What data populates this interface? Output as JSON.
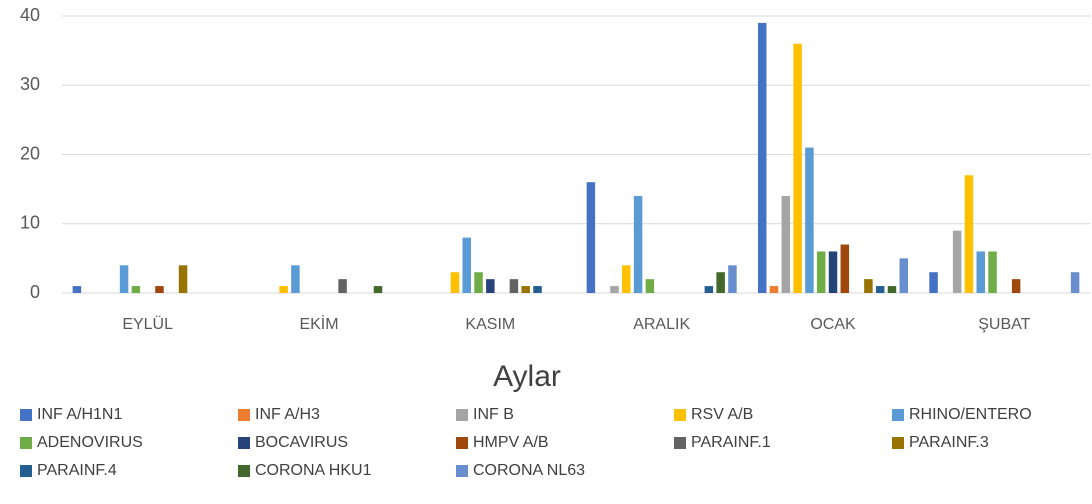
{
  "chart_data": {
    "type": "bar",
    "x_label": "Aylar",
    "categories": [
      "EYLÜL",
      "EKİM",
      "KASIM",
      "ARALIK",
      "OCAK",
      "ŞUBAT"
    ],
    "ylim": [
      0,
      40
    ],
    "yticks": [
      0,
      10,
      20,
      30,
      40
    ],
    "grid": true,
    "legend": "bottom",
    "series": [
      {
        "name": "INF A/H1N1",
        "color": "#4472c4",
        "values": [
          1,
          0,
          0,
          16,
          39,
          3
        ]
      },
      {
        "name": "INF A/H3",
        "color": "#ed7d31",
        "values": [
          0,
          0,
          0,
          0,
          1,
          0
        ]
      },
      {
        "name": "INF B",
        "color": "#a5a5a5",
        "values": [
          0,
          0,
          0,
          1,
          14,
          9
        ]
      },
      {
        "name": "RSV A/B",
        "color": "#ffc000",
        "values": [
          0,
          1,
          3,
          4,
          36,
          17
        ]
      },
      {
        "name": "RHINO/ENTERO",
        "color": "#5b9bd5",
        "values": [
          4,
          4,
          8,
          14,
          21,
          6
        ]
      },
      {
        "name": "ADENOVIRUS",
        "color": "#70ad47",
        "values": [
          1,
          0,
          3,
          2,
          6,
          6
        ]
      },
      {
        "name": "BOCAVIRUS",
        "color": "#264478",
        "values": [
          0,
          0,
          2,
          0,
          6,
          0
        ]
      },
      {
        "name": "HMPV A/B",
        "color": "#9e480e",
        "values": [
          1,
          0,
          0,
          0,
          7,
          2
        ]
      },
      {
        "name": "PARAINF.1",
        "color": "#636363",
        "values": [
          0,
          2,
          2,
          0,
          0,
          0
        ]
      },
      {
        "name": "PARAINF.3",
        "color": "#997300",
        "values": [
          4,
          0,
          1,
          0,
          2,
          0
        ]
      },
      {
        "name": "PARAINF.4",
        "color": "#255e91",
        "values": [
          0,
          0,
          1,
          1,
          1,
          0
        ]
      },
      {
        "name": "CORONA HKU1",
        "color": "#43682b",
        "values": [
          0,
          1,
          0,
          3,
          1,
          0
        ]
      },
      {
        "name": "CORONA NL63",
        "color": "#698ed0",
        "values": [
          0,
          0,
          0,
          4,
          5,
          3
        ]
      }
    ]
  }
}
